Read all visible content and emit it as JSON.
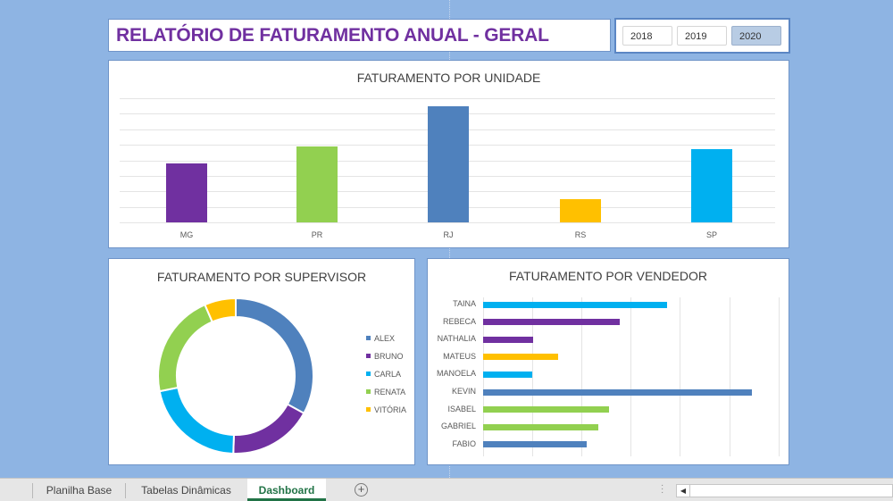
{
  "header": {
    "title": "RELATÓRIO DE FATURAMENTO ANUAL - GERAL"
  },
  "slicer": {
    "years": [
      "2018",
      "2019",
      "2020"
    ],
    "selected": "2020",
    "colors": {
      "selected_bg": "#b8cce4",
      "border": "#5b86c4"
    }
  },
  "sheet_tabs": {
    "tabs": [
      "Planilha Base",
      "Tabelas Dinâmicas",
      "Dashboard"
    ],
    "active": "Dashboard",
    "add_icon": "+",
    "scroll_left_icon": "◀"
  },
  "colors": {
    "background": "#8eb4e3",
    "title": "#7030a0",
    "accent_active_tab": "#217346"
  },
  "chart_data": [
    {
      "type": "bar",
      "title": "FATURAMENTO POR UNIDADE",
      "categories": [
        "MG",
        "PR",
        "RJ",
        "RS",
        "SP"
      ],
      "values": [
        3.8,
        4.9,
        7.5,
        1.5,
        4.7
      ],
      "colors": [
        "#7030a0",
        "#92d050",
        "#4f81bd",
        "#ffc000",
        "#00b0f0"
      ],
      "xlabel": "",
      "ylabel": "",
      "ylim": [
        0,
        8
      ],
      "grid": true,
      "y_axis_labels_shown": false,
      "note": "values relative to 8 unlabeled gridline intervals"
    },
    {
      "type": "pie",
      "subtype": "donut",
      "title": "FATURAMENTO POR SUPERVISOR",
      "categories": [
        "ALEX",
        "BRUNO",
        "CARLA",
        "RENATA",
        "VITÓRIA"
      ],
      "values": [
        32.9,
        17.5,
        21.3,
        21.6,
        6.5
      ],
      "colors": [
        "#4f81bd",
        "#7030a0",
        "#00b0f0",
        "#92d050",
        "#ffc000"
      ],
      "legend_position": "right"
    },
    {
      "type": "bar",
      "orientation": "horizontal",
      "title": "FATURAMENTO POR VENDEDOR",
      "categories": [
        "TAINA",
        "REBECA",
        "NATHALIA",
        "MATEUS",
        "MANOELA",
        "KEVIN",
        "ISABEL",
        "GABRIEL",
        "FABIO"
      ],
      "values": [
        3.73,
        2.77,
        1.02,
        1.53,
        1.0,
        5.46,
        2.56,
        2.34,
        2.1
      ],
      "colors": [
        "#00b0f0",
        "#7030a0",
        "#7030a0",
        "#ffc000",
        "#00b0f0",
        "#4f81bd",
        "#92d050",
        "#92d050",
        "#4f81bd"
      ],
      "xlim": [
        0,
        6
      ],
      "grid": true,
      "x_axis_labels_shown": false,
      "note": "values relative to 6 unlabeled vertical gridline intervals"
    }
  ]
}
